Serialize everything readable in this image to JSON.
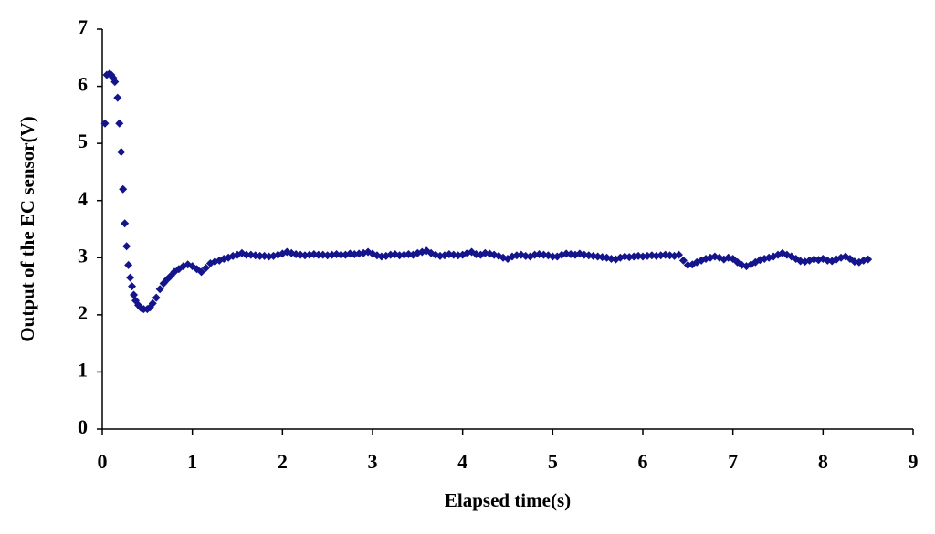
{
  "chart_data": {
    "type": "scatter",
    "xlabel": "Elapsed time(s)",
    "ylabel": "Output  of the EC sensor(V)",
    "xlim": [
      0,
      9
    ],
    "ylim": [
      0,
      7
    ],
    "xticks": [
      0,
      1,
      2,
      3,
      4,
      5,
      6,
      7,
      8,
      9
    ],
    "yticks": [
      0,
      1,
      2,
      3,
      4,
      5,
      6,
      7
    ],
    "color": "#14148c",
    "x": [
      0.03,
      0.05,
      0.08,
      0.1,
      0.12,
      0.14,
      0.17,
      0.19,
      0.21,
      0.23,
      0.25,
      0.27,
      0.29,
      0.31,
      0.33,
      0.35,
      0.37,
      0.4,
      0.43,
      0.46,
      0.5,
      0.53,
      0.56,
      0.6,
      0.64,
      0.68,
      0.72,
      0.76,
      0.8,
      0.85,
      0.9,
      0.95,
      1.0,
      1.05,
      1.1,
      1.15,
      1.2,
      1.25,
      1.3,
      1.35,
      1.4,
      1.45,
      1.5,
      1.55,
      1.6,
      1.65,
      1.7,
      1.75,
      1.8,
      1.85,
      1.9,
      1.95,
      2.0,
      2.05,
      2.1,
      2.15,
      2.2,
      2.25,
      2.3,
      2.35,
      2.4,
      2.45,
      2.5,
      2.55,
      2.6,
      2.65,
      2.7,
      2.75,
      2.8,
      2.85,
      2.9,
      2.95,
      3.0,
      3.05,
      3.1,
      3.15,
      3.2,
      3.25,
      3.3,
      3.35,
      3.4,
      3.45,
      3.5,
      3.55,
      3.6,
      3.65,
      3.7,
      3.75,
      3.8,
      3.85,
      3.9,
      3.95,
      4.0,
      4.05,
      4.1,
      4.15,
      4.2,
      4.25,
      4.3,
      4.35,
      4.4,
      4.45,
      4.5,
      4.55,
      4.6,
      4.65,
      4.7,
      4.75,
      4.8,
      4.85,
      4.9,
      4.95,
      5.0,
      5.05,
      5.1,
      5.15,
      5.2,
      5.25,
      5.3,
      5.35,
      5.4,
      5.45,
      5.5,
      5.55,
      5.6,
      5.65,
      5.7,
      5.75,
      5.8,
      5.85,
      5.9,
      5.95,
      6.0,
      6.05,
      6.1,
      6.15,
      6.2,
      6.25,
      6.3,
      6.35,
      6.4,
      6.45,
      6.5,
      6.55,
      6.6,
      6.65,
      6.7,
      6.75,
      6.8,
      6.85,
      6.9,
      6.95,
      7.0,
      7.05,
      7.1,
      7.15,
      7.2,
      7.25,
      7.3,
      7.35,
      7.4,
      7.45,
      7.5,
      7.55,
      7.6,
      7.65,
      7.7,
      7.75,
      7.8,
      7.85,
      7.9,
      7.95,
      8.0,
      8.05,
      8.1,
      8.15,
      8.2,
      8.25,
      8.3,
      8.35,
      8.4,
      8.45,
      8.5
    ],
    "values": [
      5.35,
      6.2,
      6.22,
      6.2,
      6.15,
      6.08,
      5.8,
      5.35,
      4.85,
      4.2,
      3.6,
      3.2,
      2.87,
      2.65,
      2.5,
      2.35,
      2.25,
      2.17,
      2.12,
      2.1,
      2.1,
      2.13,
      2.2,
      2.3,
      2.45,
      2.55,
      2.62,
      2.68,
      2.75,
      2.8,
      2.85,
      2.88,
      2.85,
      2.8,
      2.75,
      2.82,
      2.9,
      2.93,
      2.95,
      2.98,
      3.0,
      3.03,
      3.05,
      3.08,
      3.05,
      3.05,
      3.04,
      3.03,
      3.03,
      3.02,
      3.03,
      3.05,
      3.07,
      3.1,
      3.08,
      3.06,
      3.05,
      3.04,
      3.05,
      3.06,
      3.05,
      3.05,
      3.04,
      3.05,
      3.06,
      3.05,
      3.05,
      3.07,
      3.06,
      3.07,
      3.08,
      3.1,
      3.07,
      3.04,
      3.02,
      3.03,
      3.05,
      3.06,
      3.04,
      3.05,
      3.06,
      3.05,
      3.08,
      3.1,
      3.12,
      3.08,
      3.05,
      3.03,
      3.04,
      3.06,
      3.05,
      3.04,
      3.05,
      3.08,
      3.1,
      3.06,
      3.05,
      3.08,
      3.07,
      3.05,
      3.03,
      3.0,
      2.98,
      3.02,
      3.04,
      3.05,
      3.03,
      3.02,
      3.05,
      3.06,
      3.05,
      3.04,
      3.02,
      3.02,
      3.05,
      3.07,
      3.06,
      3.05,
      3.07,
      3.05,
      3.04,
      3.03,
      3.02,
      3.01,
      3.0,
      2.98,
      2.97,
      3.0,
      3.02,
      3.01,
      3.02,
      3.03,
      3.02,
      3.03,
      3.04,
      3.03,
      3.04,
      3.05,
      3.04,
      3.03,
      3.05,
      2.95,
      2.87,
      2.88,
      2.92,
      2.95,
      2.98,
      3.0,
      3.02,
      3.0,
      2.97,
      3.0,
      2.98,
      2.92,
      2.87,
      2.85,
      2.88,
      2.92,
      2.96,
      2.98,
      3.0,
      3.02,
      3.05,
      3.08,
      3.05,
      3.02,
      2.98,
      2.94,
      2.93,
      2.95,
      2.97,
      2.96,
      2.98,
      2.95,
      2.94,
      2.97,
      3.0,
      3.02,
      2.98,
      2.93,
      2.92,
      2.95,
      2.97
    ]
  }
}
